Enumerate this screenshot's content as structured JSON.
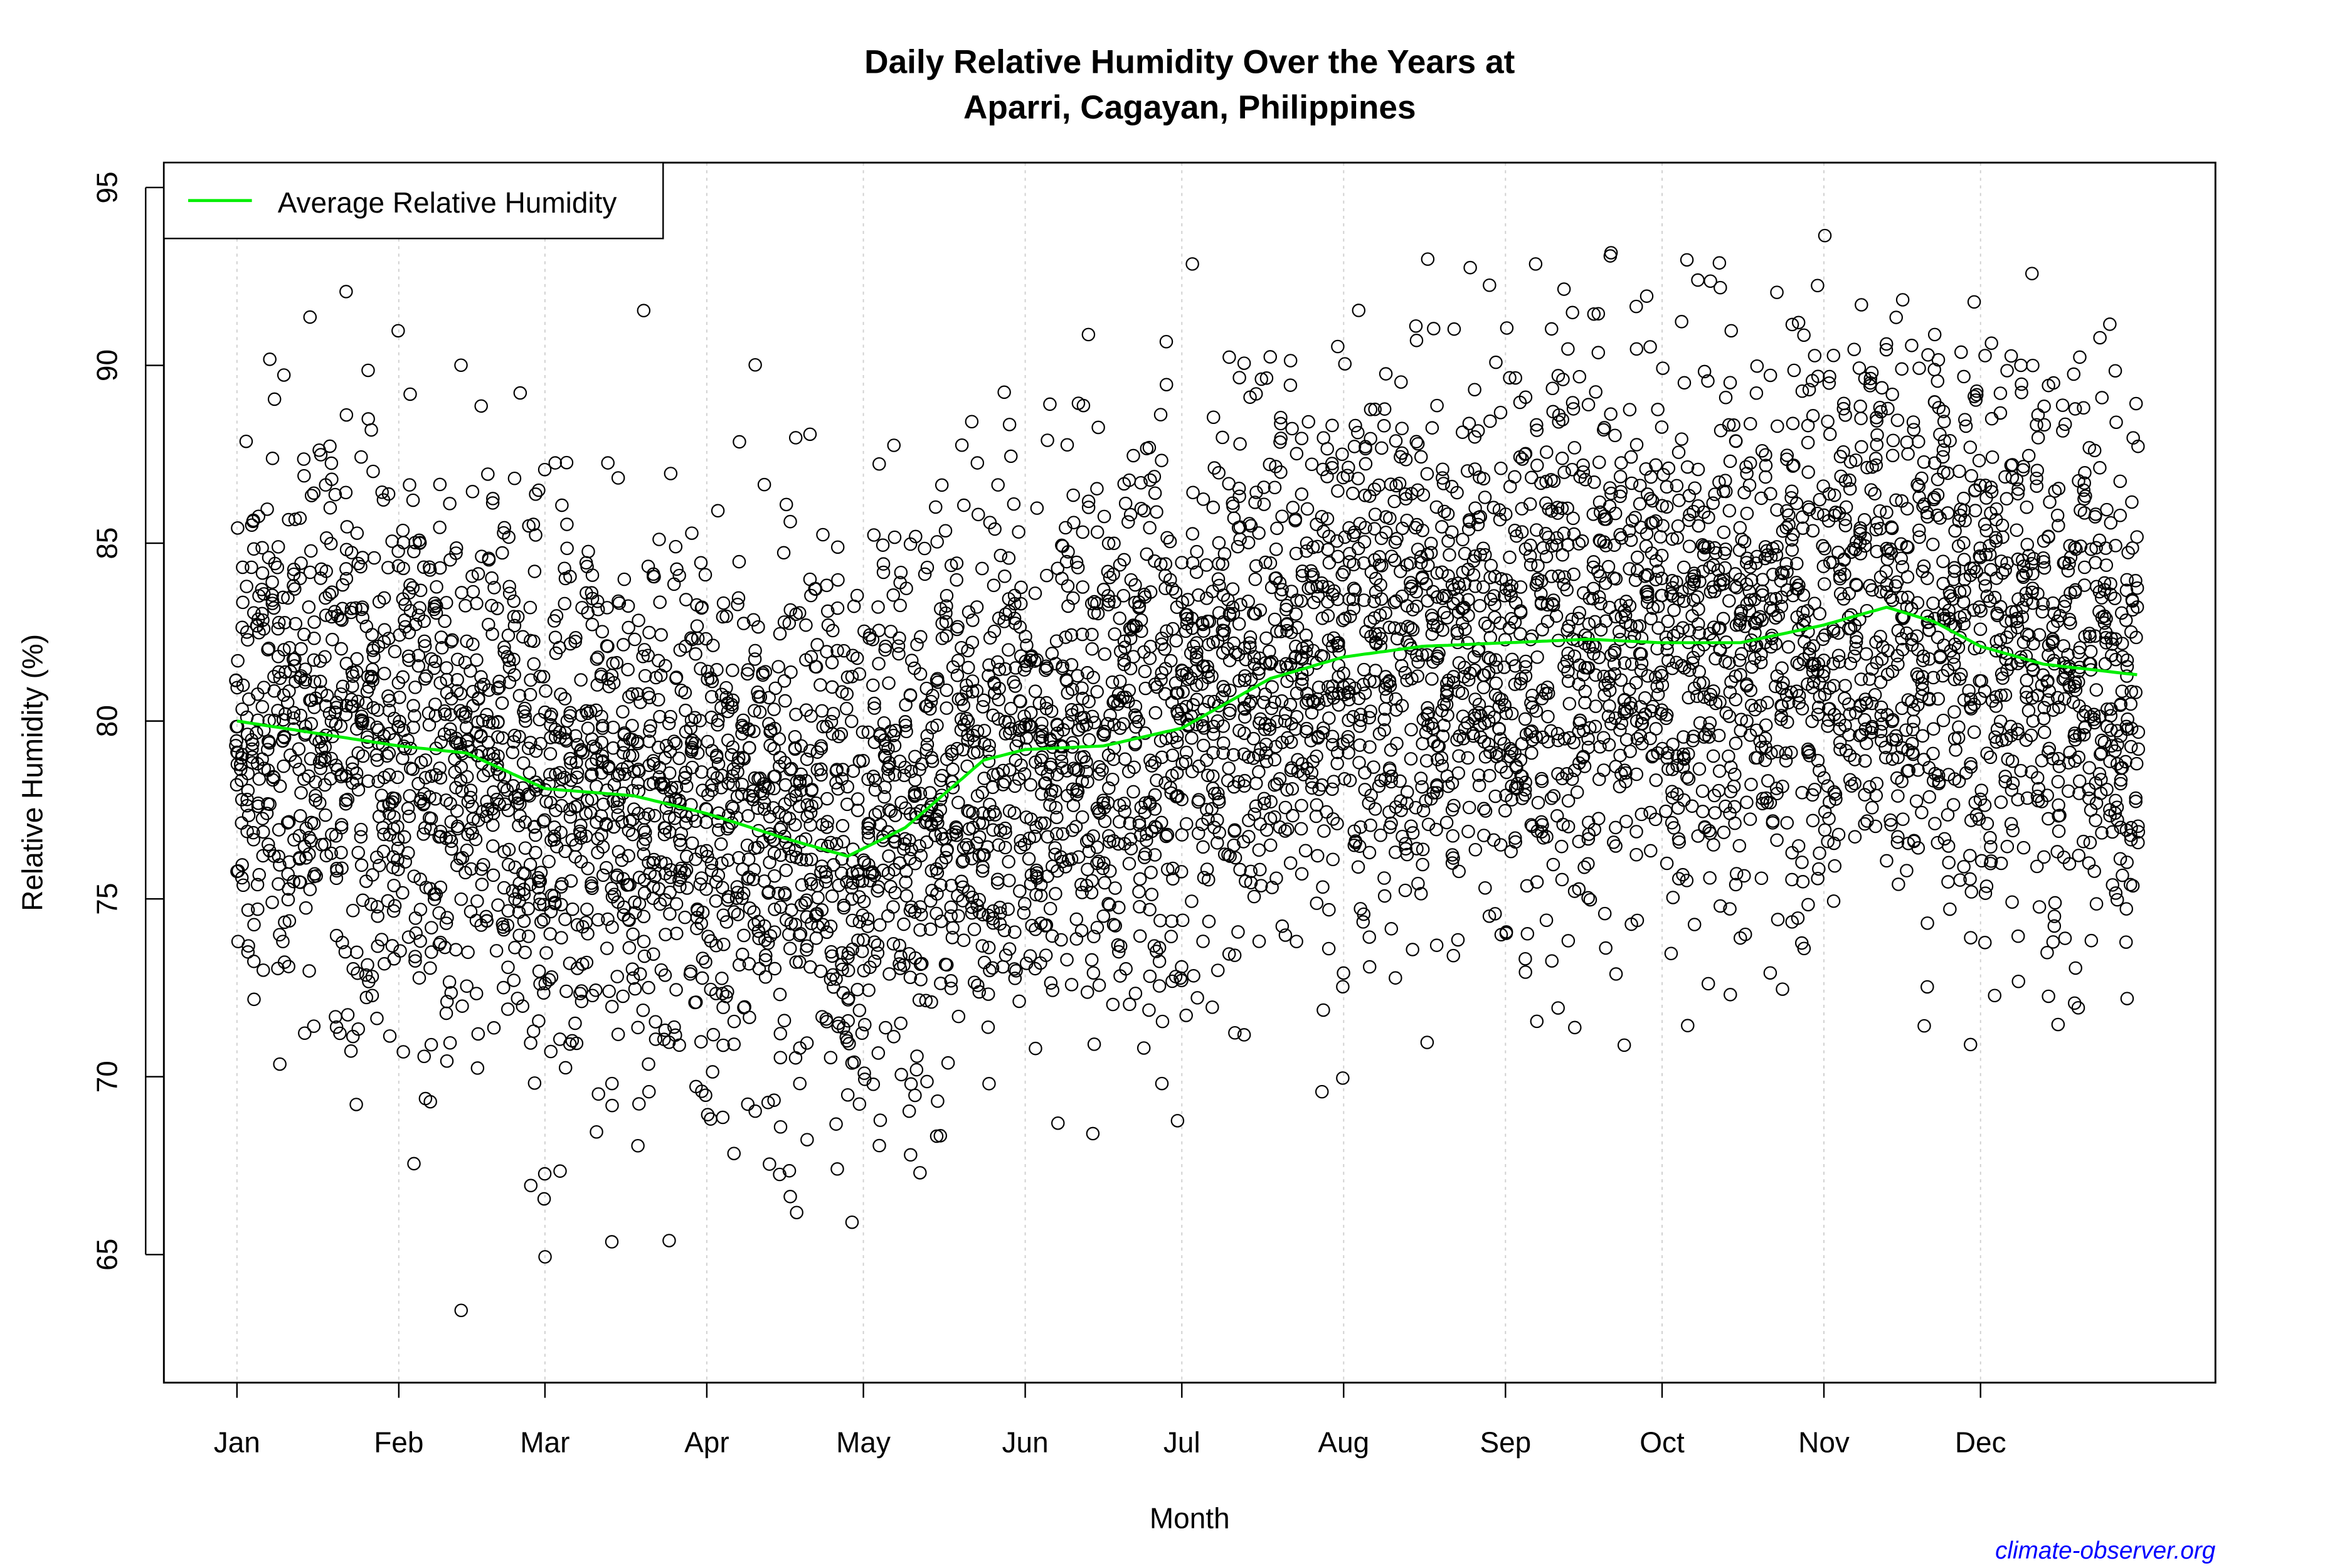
{
  "chart_data": {
    "type": "scatter",
    "title": "Daily Relative Humidity Over the Years at",
    "subtitle": "Aparri, Cagayan, Philippines",
    "xlabel": "Month",
    "ylabel": "Relative Humidity  (%)",
    "x_tick_labels": [
      "Jan",
      "Feb",
      "Mar",
      "Apr",
      "May",
      "Jun",
      "Jul",
      "Aug",
      "Sep",
      "Oct",
      "Nov",
      "Dec"
    ],
    "x_tick_days": [
      0,
      31,
      59,
      90,
      120,
      151,
      181,
      212,
      243,
      273,
      304,
      334
    ],
    "y_ticks": [
      65,
      70,
      75,
      80,
      85,
      90,
      95
    ],
    "ylim": [
      61.4,
      95.7
    ],
    "xlim_days": [
      -14,
      379
    ],
    "grid": "vertical dotted at month starts",
    "legend": {
      "position": "top-left",
      "entries": [
        {
          "label": "Average Relative Humidity",
          "color": "#00ee00"
        }
      ]
    },
    "average_series": {
      "name": "Average Relative Humidity",
      "color": "#00ee00",
      "day": [
        0,
        31,
        44,
        59,
        76,
        90,
        105,
        117,
        128,
        143,
        151,
        166,
        181,
        198,
        212,
        227,
        243,
        259,
        273,
        288,
        304,
        316,
        325,
        334,
        346,
        364
      ],
      "value": [
        80.0,
        79.3,
        79.1,
        78.1,
        77.9,
        77.4,
        76.7,
        76.2,
        77.0,
        78.9,
        79.2,
        79.3,
        79.8,
        81.2,
        81.8,
        82.1,
        82.2,
        82.3,
        82.2,
        82.2,
        82.7,
        83.2,
        82.8,
        82.1,
        81.6,
        81.3
      ]
    },
    "scatter_range": {
      "min": 62.6,
      "max": 93.7
    },
    "point_style": "open circle, black"
  },
  "credit": "climate-observer.org"
}
